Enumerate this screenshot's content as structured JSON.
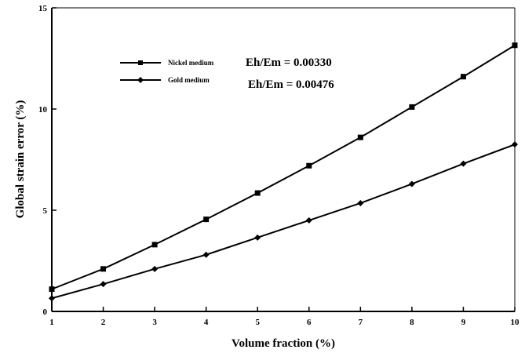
{
  "chart_data": {
    "type": "line",
    "xlabel": "Volume fraction (%)",
    "ylabel": "Global strain error (%)",
    "xlim": [
      1,
      10
    ],
    "ylim": [
      0,
      15
    ],
    "xticks": [
      1,
      2,
      3,
      4,
      5,
      6,
      7,
      8,
      9,
      10
    ],
    "yticks": [
      0,
      5,
      10,
      15
    ],
    "grid": false,
    "legend_position": "upper-left",
    "series": [
      {
        "name": "Nickel medium",
        "marker": "square",
        "x": [
          1,
          2,
          3,
          4,
          5,
          6,
          7,
          8,
          9,
          10
        ],
        "y": [
          1.1,
          2.1,
          3.3,
          4.55,
          5.85,
          7.2,
          8.6,
          10.1,
          11.6,
          13.15
        ]
      },
      {
        "name": "Gold medium",
        "marker": "diamond",
        "x": [
          1,
          2,
          3,
          4,
          5,
          6,
          7,
          8,
          9,
          10
        ],
        "y": [
          0.65,
          1.35,
          2.1,
          2.8,
          3.65,
          4.5,
          5.35,
          6.3,
          7.3,
          8.25
        ]
      }
    ],
    "annotations": [
      "Eh/Em = 0.00330",
      "Eh/Em = 0.00476"
    ],
    "colors": {
      "line": "#000000",
      "background": "#ffffff"
    }
  }
}
